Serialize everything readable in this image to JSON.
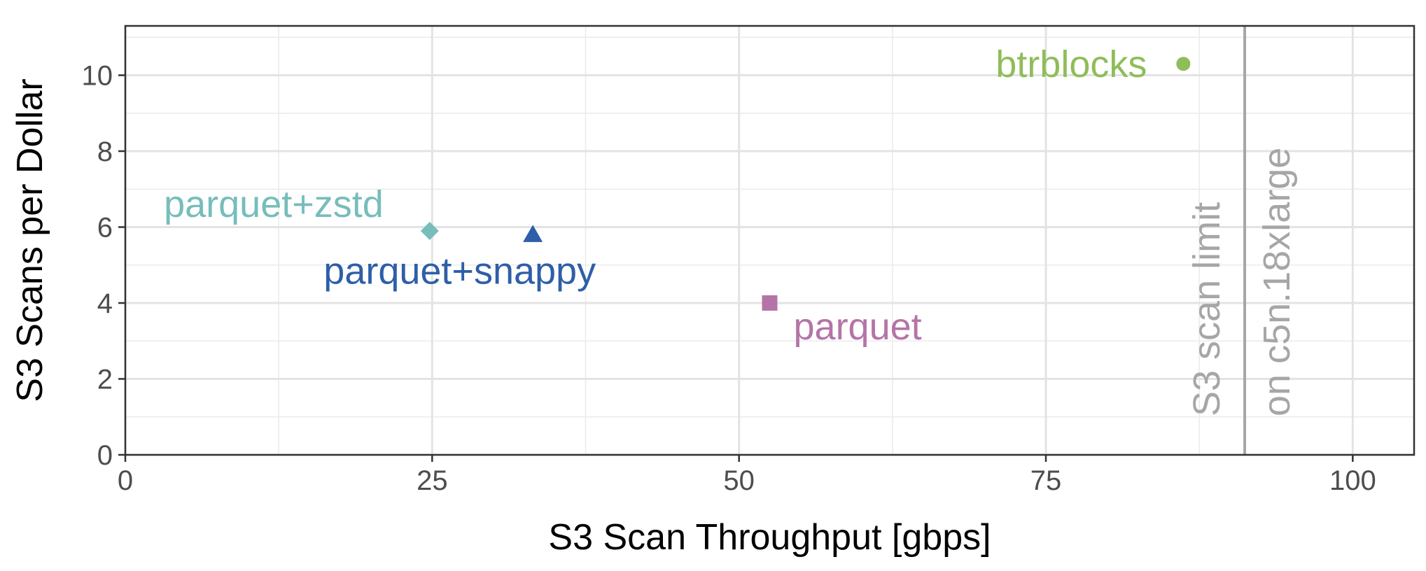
{
  "chart_data": {
    "type": "scatter",
    "title": "",
    "xlabel": "S3 Scan Throughput [gbps]",
    "ylabel": "S3 Scans per Dollar",
    "xlim": [
      0,
      105
    ],
    "ylim": [
      0,
      11.3
    ],
    "x_ticks": [
      0,
      25,
      50,
      75,
      100
    ],
    "y_ticks": [
      0,
      2,
      4,
      6,
      8,
      10
    ],
    "grid": true,
    "points": [
      {
        "name": "btrblocks",
        "x": 86.2,
        "y": 10.3,
        "shape": "circle",
        "color": "#8fbd5a",
        "label_side": "left"
      },
      {
        "name": "parquet+zstd",
        "x": 24.8,
        "y": 5.9,
        "shape": "diamond",
        "color": "#76bdbb",
        "label_side": "upper-left"
      },
      {
        "name": "parquet+snappy",
        "x": 33.2,
        "y": 5.8,
        "shape": "triangle",
        "color": "#2e5ea8",
        "label_side": "below"
      },
      {
        "name": "parquet",
        "x": 52.5,
        "y": 4.0,
        "shape": "square",
        "color": "#b574a8",
        "label_side": "lower-right"
      }
    ],
    "reference_line": {
      "x": 91.2,
      "color": "#a6a6a6",
      "label_lines": [
        "S3 scan limit",
        "on c5n.18xlarge"
      ]
    }
  }
}
